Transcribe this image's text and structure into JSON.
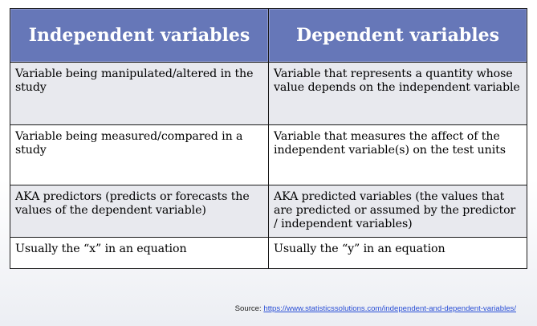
{
  "table": {
    "headers": [
      "Independent variables",
      "Dependent variables"
    ],
    "rows": [
      [
        "Variable being manipulated/altered in the study",
        "Variable that represents a quantity whose value depends on the independent variable"
      ],
      [
        "Variable being measured/compared in a study",
        "Variable that measures the affect of the independent variable(s) on the test units"
      ],
      [
        "AKA predictors (predicts or forecasts the values of the dependent variable)",
        "AKA predicted variables (the values that are predicted or assumed by the predictor / independent variables)"
      ],
      [
        "Usually the “x” in an equation",
        "Usually the “y” in an equation"
      ]
    ]
  },
  "source": {
    "label": "Source: ",
    "link_text": "https://www.statisticssolutions.com/independent-and-dependent-variables/"
  },
  "colors": {
    "header_bg": "#6677b8",
    "header_text": "#ffffff",
    "row_shade": "#e8e9ee",
    "link": "#2a4fd6"
  }
}
